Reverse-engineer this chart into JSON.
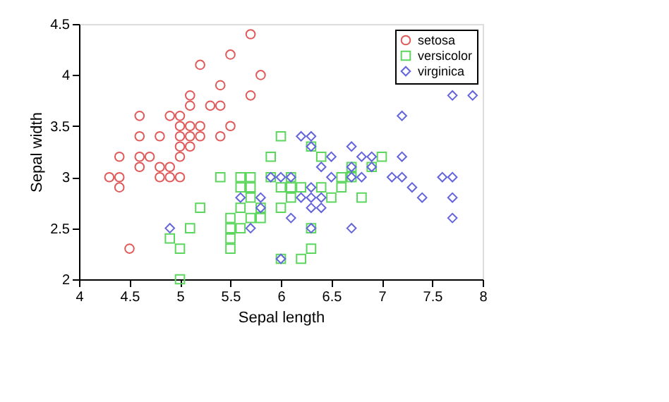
{
  "chart_data": {
    "type": "scatter",
    "xlabel": "Sepal length",
    "ylabel": "Sepal width",
    "xlim": [
      4,
      8
    ],
    "xticks": [
      4,
      4.5,
      5,
      5.5,
      6,
      6.5,
      7,
      7.5,
      8
    ],
    "ylim": [
      2,
      4.5
    ],
    "yticks": [
      2,
      2.5,
      3,
      3.5,
      4,
      4.5
    ],
    "grid": false,
    "legend": "top right",
    "series": [
      {
        "name": "setosa",
        "color": "#e05a5a",
        "marker": "circle",
        "x": [
          5.1,
          4.9,
          4.7,
          4.6,
          5.0,
          5.4,
          4.6,
          5.0,
          4.4,
          4.9,
          5.4,
          4.8,
          4.8,
          4.3,
          5.8,
          5.7,
          5.7,
          5.1,
          5.4,
          5.1,
          4.6,
          5.1,
          5.0,
          5.2,
          5.2,
          4.8,
          5.2,
          5.5,
          5.0,
          5.5,
          4.9,
          4.4,
          5.1,
          5.0,
          4.5,
          4.4,
          4.6,
          5.3,
          5.0
        ],
        "values": [
          3.5,
          3.0,
          3.2,
          3.1,
          3.6,
          3.9,
          3.4,
          3.4,
          2.9,
          3.1,
          3.7,
          3.4,
          3.0,
          3.0,
          4.0,
          4.4,
          3.8,
          3.8,
          3.4,
          3.7,
          3.6,
          3.3,
          3.0,
          3.5,
          3.4,
          3.1,
          4.1,
          4.2,
          3.2,
          3.5,
          3.6,
          3.0,
          3.4,
          3.5,
          2.3,
          3.2,
          3.2,
          3.7,
          3.3
        ]
      },
      {
        "name": "versicolor",
        "color": "#5cd65c",
        "marker": "square",
        "x": [
          7.0,
          6.4,
          6.9,
          5.5,
          6.5,
          5.7,
          6.3,
          4.9,
          6.6,
          5.2,
          5.0,
          5.9,
          6.0,
          6.1,
          5.6,
          6.7,
          5.6,
          5.8,
          6.2,
          5.6,
          5.9,
          6.1,
          6.3,
          6.4,
          6.6,
          6.8,
          6.7,
          6.0,
          5.7,
          5.5,
          6.0,
          5.4,
          6.0,
          6.3,
          5.5,
          5.5,
          6.1,
          5.8,
          5.0,
          5.6,
          5.7,
          5.7,
          6.2,
          5.1
        ],
        "values": [
          3.2,
          3.2,
          3.1,
          2.3,
          2.8,
          2.8,
          3.3,
          2.4,
          2.9,
          2.7,
          2.0,
          3.0,
          2.2,
          2.9,
          2.9,
          3.1,
          3.0,
          2.7,
          2.2,
          2.5,
          3.2,
          2.8,
          2.5,
          2.9,
          3.0,
          2.8,
          3.0,
          2.9,
          2.6,
          2.4,
          2.7,
          3.0,
          3.4,
          2.3,
          2.5,
          2.6,
          3.0,
          2.6,
          2.3,
          2.7,
          3.0,
          2.9,
          2.9,
          2.5
        ]
      },
      {
        "name": "virginica",
        "color": "#6464dc",
        "marker": "diamond",
        "x": [
          6.3,
          5.8,
          7.1,
          6.3,
          6.5,
          7.6,
          4.9,
          7.3,
          6.7,
          7.2,
          6.5,
          6.4,
          6.8,
          5.7,
          5.8,
          7.7,
          7.7,
          6.0,
          6.9,
          5.6,
          7.7,
          6.3,
          6.7,
          7.2,
          6.2,
          6.1,
          6.4,
          7.2,
          7.4,
          7.9,
          6.3,
          6.1,
          7.7,
          6.3,
          6.4,
          6.0,
          6.9,
          6.7,
          6.8,
          6.7,
          6.3,
          6.2,
          5.9
        ],
        "values": [
          3.3,
          2.7,
          3.0,
          2.9,
          3.0,
          3.0,
          2.5,
          2.9,
          2.5,
          3.6,
          3.2,
          2.7,
          3.0,
          2.5,
          2.8,
          3.8,
          2.6,
          2.2,
          3.2,
          2.8,
          2.8,
          2.7,
          3.3,
          3.2,
          2.8,
          3.0,
          2.8,
          3.0,
          2.8,
          3.8,
          2.8,
          2.6,
          3.0,
          3.4,
          3.1,
          3.0,
          3.1,
          3.1,
          3.2,
          3.0,
          2.5,
          3.4,
          3.0
        ]
      }
    ]
  }
}
